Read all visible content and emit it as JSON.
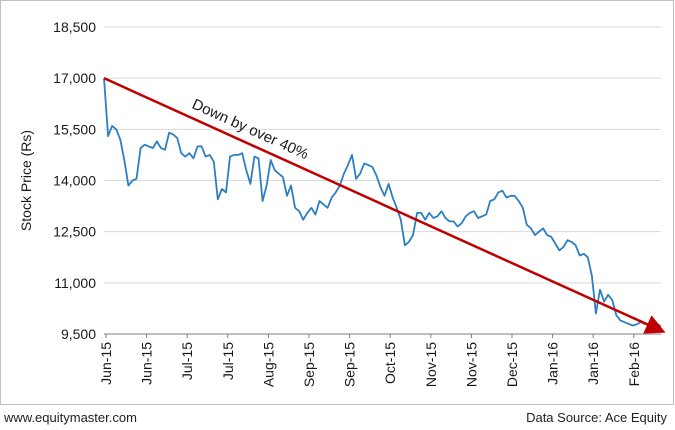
{
  "footer": {
    "left": "www.equitymaster.com",
    "right": "Data Source: Ace Equity"
  },
  "colors": {
    "series": "#2d7fc1",
    "trend": "#c00000",
    "grid": "#d9d9d9",
    "axis": "#7f7f7f",
    "text": "#1a1a1a"
  },
  "chart_data": {
    "type": "line",
    "title": "",
    "xlabel": "",
    "ylabel": "Stock Price (Rs)",
    "ylim": [
      9500,
      18500
    ],
    "yticks": [
      9500,
      11000,
      12500,
      14000,
      15500,
      17000,
      18500
    ],
    "ytick_labels": [
      "9,500",
      "11,000",
      "12,500",
      "14,000",
      "15,500",
      "17,000",
      "18,500"
    ],
    "grid": "horizontal",
    "xtick_labels": [
      "Jun-15",
      "Jun-15",
      "Jul-15",
      "Jul-15",
      "Aug-15",
      "Sep-15",
      "Sep-15",
      "Oct-15",
      "Nov-15",
      "Nov-15",
      "Dec-15",
      "Jan-16",
      "Jan-16",
      "Feb-16"
    ],
    "annotation": "Down by over 40%",
    "trend_line": {
      "start": [
        0,
        17000
      ],
      "end": [
        137,
        9600
      ]
    },
    "series": [
      {
        "values": [
          17000,
          15300,
          15600,
          15500,
          15200,
          14600,
          13850,
          14000,
          14050,
          14950,
          15050,
          15000,
          14950,
          15150,
          14950,
          14900,
          15400,
          15350,
          15250,
          14800,
          14700,
          14800,
          14650,
          15000,
          15000,
          14700,
          14750,
          14550,
          13450,
          13750,
          13650,
          14700,
          14750,
          14750,
          14800,
          14300,
          13900,
          14700,
          14650,
          13400,
          13850,
          14600,
          14300,
          14200,
          14100,
          13550,
          13850,
          13200,
          13100,
          12850,
          13050,
          13200,
          13000,
          13400,
          13300,
          13200,
          13500,
          13650,
          13850,
          14200,
          14450,
          14750,
          14050,
          14200,
          14500,
          14450,
          14400,
          14150,
          13800,
          13550,
          13900,
          13500,
          13200,
          12850,
          12100,
          12200,
          12400,
          13050,
          13050,
          12850,
          13050,
          12900,
          12950,
          13100,
          12900,
          12800,
          12800,
          12650,
          12750,
          12950,
          13050,
          13100,
          12900,
          12950,
          13000,
          13400,
          13450,
          13650,
          13700,
          13500,
          13550,
          13550,
          13400,
          13200,
          12700,
          12600,
          12400,
          12500,
          12600,
          12400,
          12350,
          12150,
          11950,
          12050,
          12250,
          12200,
          12100,
          11800,
          11850,
          11750,
          11200,
          10100,
          10800,
          10450,
          10650,
          10500,
          10050,
          9900,
          9850,
          9800,
          9750,
          9780,
          9850,
          9800,
          9780,
          9790,
          9800,
          9720
        ]
      }
    ]
  }
}
